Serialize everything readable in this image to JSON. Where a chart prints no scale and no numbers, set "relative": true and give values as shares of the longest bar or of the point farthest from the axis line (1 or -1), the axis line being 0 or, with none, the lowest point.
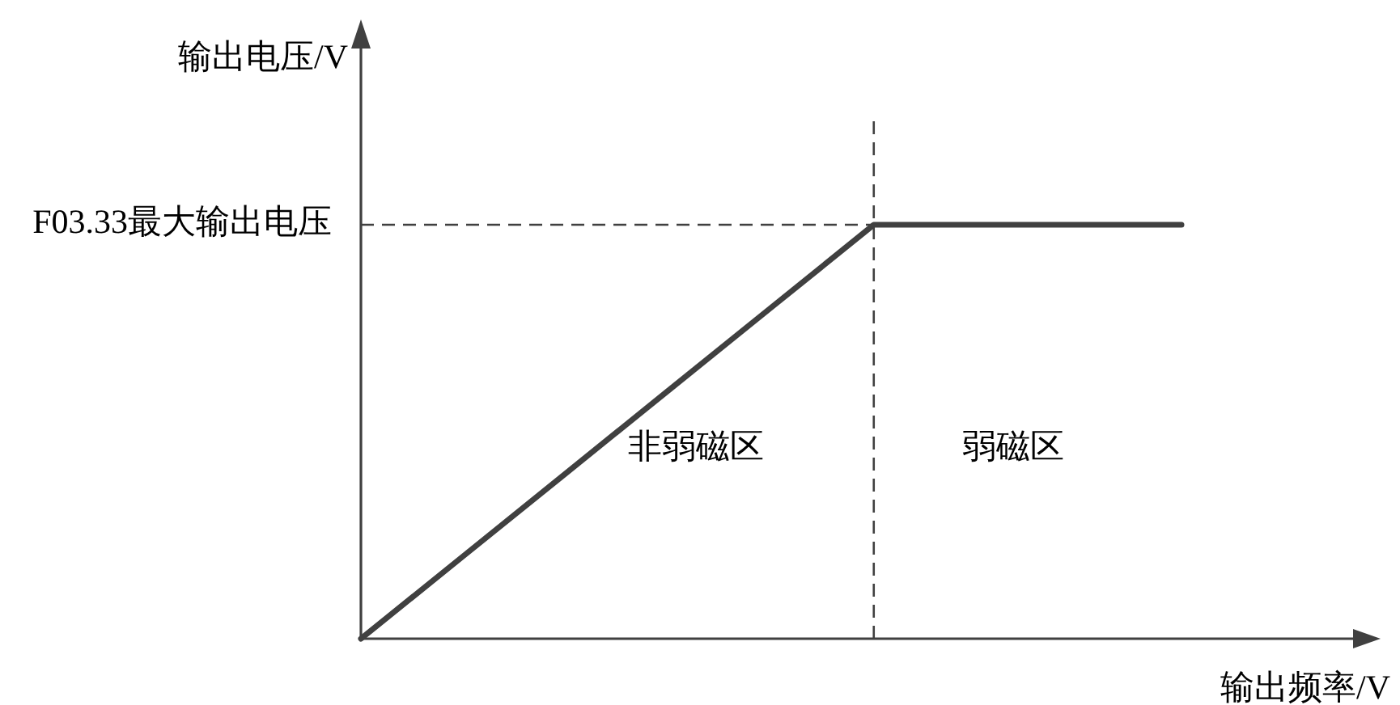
{
  "chart_data": {
    "type": "line",
    "xlabel": "输出频率/V",
    "ylabel": "输出电压/V",
    "relative": true,
    "categories": [
      null,
      null,
      null,
      null,
      null,
      null,
      null,
      null,
      null
    ],
    "series": [
      {
        "color": "#404040",
        "values": [
          0,
          0.2,
          0.4,
          0.6,
          0.8,
          1,
          1,
          1,
          1
        ]
      }
    ],
    "ref_lines": [
      {
        "axis": "y",
        "value": 1,
        "label": "F03.33最大输出电压",
        "line_style": "dashed",
        "color": "#404040"
      }
    ],
    "annotations": [
      "非弱磁区",
      "弱磁区"
    ]
  }
}
